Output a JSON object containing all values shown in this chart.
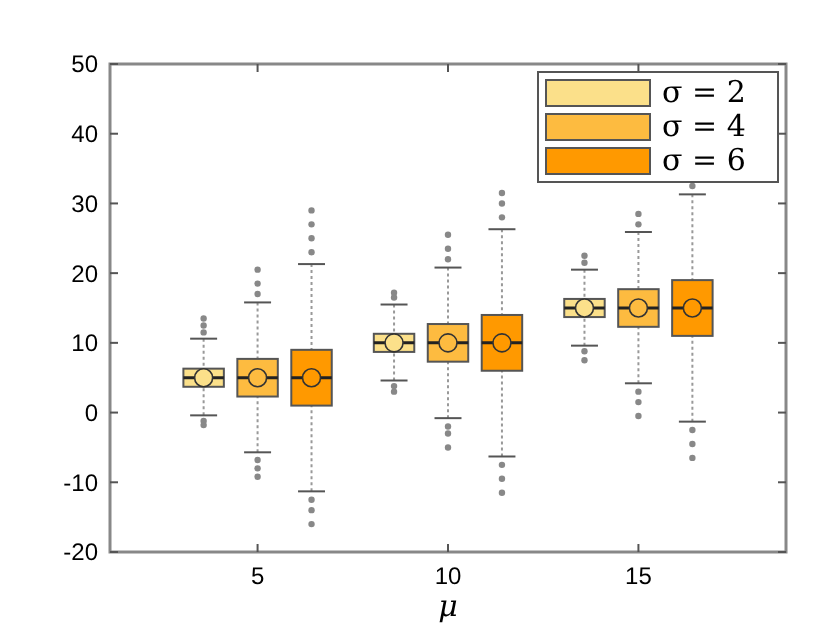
{
  "chart_data": {
    "type": "box",
    "xlabel": "μ",
    "categories": [
      "5",
      "10",
      "15"
    ],
    "ylim": [
      -20,
      50
    ],
    "yticks": [
      -20,
      -10,
      0,
      10,
      20,
      30,
      40,
      50
    ],
    "legend": "top right",
    "marker": "circle",
    "grid": false,
    "series": [
      {
        "name": "σ = 2",
        "color": "#fbe08a",
        "boxes": [
          {
            "low": -0.4,
            "q1": 3.7,
            "median": 5,
            "q3": 6.3,
            "high": 10.6,
            "mean": 5,
            "outliers": [
              11.5,
              12.5,
              13.5,
              -1.2,
              -1.8
            ]
          },
          {
            "low": 4.6,
            "q1": 8.7,
            "median": 10,
            "q3": 11.3,
            "high": 15.5,
            "mean": 10,
            "outliers": [
              16.5,
              17.2,
              3.8,
              3
            ]
          },
          {
            "low": 9.6,
            "q1": 13.7,
            "median": 15,
            "q3": 16.3,
            "high": 20.5,
            "mean": 15,
            "outliers": [
              21.5,
              22.5,
              8.8,
              7.5
            ]
          }
        ]
      },
      {
        "name": "σ = 4",
        "color": "#fdbb40",
        "boxes": [
          {
            "low": -5.7,
            "q1": 2.3,
            "median": 5,
            "q3": 7.7,
            "high": 15.8,
            "mean": 5,
            "outliers": [
              17,
              18.5,
              20.5,
              -6.8,
              -8,
              -9.2
            ]
          },
          {
            "low": -0.8,
            "q1": 7.3,
            "median": 10,
            "q3": 12.7,
            "high": 20.8,
            "mean": 10,
            "outliers": [
              22,
              23.5,
              25.5,
              -2,
              -3,
              -5
            ]
          },
          {
            "low": 4.2,
            "q1": 12.3,
            "median": 15,
            "q3": 17.7,
            "high": 25.9,
            "mean": 15,
            "outliers": [
              27,
              28.5,
              3,
              1.5,
              -0.5
            ]
          }
        ]
      },
      {
        "name": "σ = 6",
        "color": "#ff9900",
        "boxes": [
          {
            "low": -11.3,
            "q1": 1,
            "median": 5,
            "q3": 9,
            "high": 21.3,
            "mean": 5,
            "outliers": [
              23,
              25,
              27,
              29,
              -12.5,
              -14,
              -16
            ]
          },
          {
            "low": -6.3,
            "q1": 6,
            "median": 10,
            "q3": 14,
            "high": 26.3,
            "mean": 10,
            "outliers": [
              28,
              30,
              31.5,
              -7.5,
              -9.5,
              -11.5
            ]
          },
          {
            "low": -1.3,
            "q1": 11,
            "median": 15,
            "q3": 19,
            "high": 31.3,
            "mean": 15,
            "outliers": [
              32.5,
              -2.5,
              -4.5,
              -6.5
            ]
          }
        ]
      }
    ]
  }
}
